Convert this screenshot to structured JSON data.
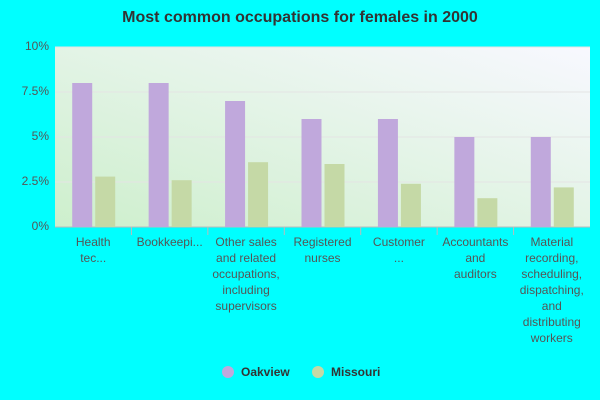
{
  "chart_data": {
    "type": "bar",
    "title": "Most common occupations for females in 2000",
    "categories": [
      "Health tec...",
      "Bookkeepi...",
      "Other sales and related occupations, including supervisors",
      "Registered nurses",
      "Customer ...",
      "Accountants and auditors",
      "Material recording, scheduling, dispatching, and distributing workers"
    ],
    "series": [
      {
        "name": "Oakview",
        "color": "#c0a8dc",
        "values": [
          8,
          8,
          7,
          6,
          6,
          5,
          5
        ]
      },
      {
        "name": "Missouri",
        "color": "#c5d9a6",
        "values": [
          2.8,
          2.6,
          3.6,
          3.5,
          2.4,
          1.6,
          2.2
        ]
      }
    ],
    "ylim": [
      0,
      10
    ],
    "yticks": [
      {
        "value": 0,
        "label": "0%"
      },
      {
        "value": 2.5,
        "label": "2.5%"
      },
      {
        "value": 5,
        "label": "5%"
      },
      {
        "value": 7.5,
        "label": "7.5%"
      },
      {
        "value": 10,
        "label": "10%"
      }
    ],
    "grid": true,
    "legend": "bottom"
  }
}
